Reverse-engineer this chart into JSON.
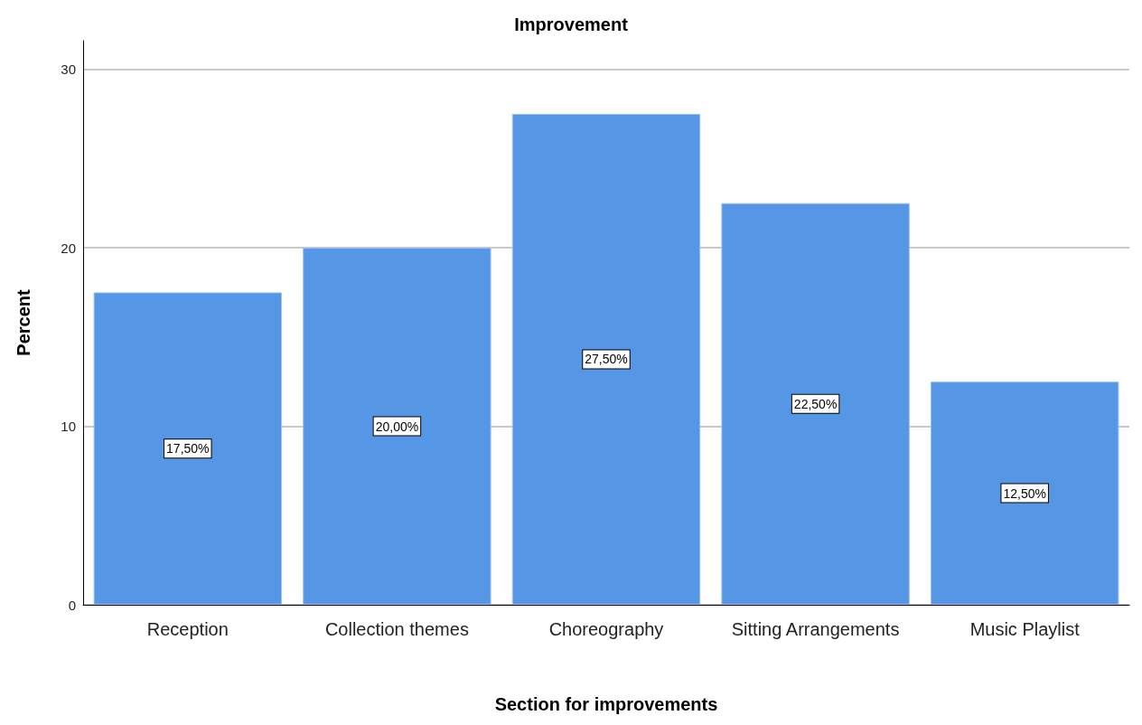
{
  "chart_data": {
    "type": "bar",
    "title": "Improvement",
    "xlabel": "Section for improvements",
    "ylabel": "Percent",
    "categories": [
      "Reception",
      "Collection themes",
      "Choreography",
      "Sitting Arrangements",
      "Music Playlist"
    ],
    "values": [
      17.5,
      20,
      27.5,
      22.5,
      12.5
    ],
    "value_labels": [
      "17,50%",
      "20,00%",
      "27,50%",
      "22,50%",
      "12,50%"
    ],
    "color": "#5596e5",
    "ylim": [
      0,
      31.6
    ],
    "yticks": [
      0,
      10,
      20,
      30
    ],
    "grid": "y"
  }
}
